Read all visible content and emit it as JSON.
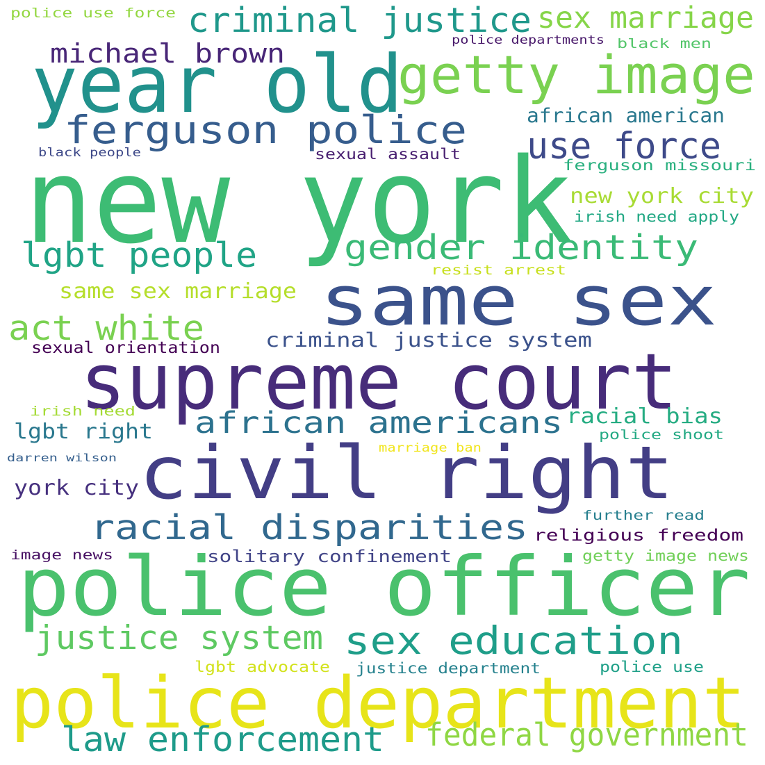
{
  "words": [
    {
      "text": "new york",
      "color": "#3dbc74"
    },
    {
      "text": "police officer",
      "color": "#4ac16d"
    },
    {
      "text": "police department",
      "color": "#e7e419"
    },
    {
      "text": "supreme court",
      "color": "#472c7a"
    },
    {
      "text": "civil right",
      "color": "#433e85"
    },
    {
      "text": "same sex",
      "color": "#3b528b"
    },
    {
      "text": "year old",
      "color": "#21918c"
    },
    {
      "text": "getty image",
      "color": "#7ad151"
    },
    {
      "text": "ferguson police",
      "color": "#365d8d"
    },
    {
      "text": "racial disparities",
      "color": "#31688e"
    },
    {
      "text": "sex education",
      "color": "#1f9e89"
    },
    {
      "text": "african americans",
      "color": "#2c728e"
    },
    {
      "text": "criminal justice",
      "color": "#1f988b"
    },
    {
      "text": "gender identity",
      "color": "#3aba76"
    },
    {
      "text": "law enforcement",
      "color": "#1e9b8a"
    },
    {
      "text": "justice system",
      "color": "#5ec962"
    },
    {
      "text": "federal government",
      "color": "#8fd744"
    },
    {
      "text": "lgbt people",
      "color": "#20a486"
    },
    {
      "text": "sex marriage",
      "color": "#86d549"
    },
    {
      "text": "use force",
      "color": "#3e4a89"
    },
    {
      "text": "act white",
      "color": "#7ad151"
    },
    {
      "text": "michael brown",
      "color": "#482677"
    },
    {
      "text": "same sex marriage",
      "color": "#b5de2b"
    },
    {
      "text": "criminal justice system",
      "color": "#3b528b"
    },
    {
      "text": "african american",
      "color": "#2a788e"
    },
    {
      "text": "new york city",
      "color": "#a8db34"
    },
    {
      "text": "religious freedom",
      "color": "#440154"
    },
    {
      "text": "york city",
      "color": "#46307e"
    },
    {
      "text": "racial bias",
      "color": "#25ac82"
    },
    {
      "text": "lgbt right",
      "color": "#2a788e"
    },
    {
      "text": "solitary confinement",
      "color": "#414487"
    },
    {
      "text": "ferguson missouri",
      "color": "#2ab07f"
    },
    {
      "text": "sexual assault",
      "color": "#481f70"
    },
    {
      "text": "sexual orientation",
      "color": "#440154"
    },
    {
      "text": "irish need apply",
      "color": "#22a884"
    },
    {
      "text": "justice department",
      "color": "#26828e"
    },
    {
      "text": "getty image news",
      "color": "#70cf57"
    },
    {
      "text": "lgbt advocate",
      "color": "#d2e21b"
    },
    {
      "text": "police use",
      "color": "#1fa088"
    },
    {
      "text": "police shoot",
      "color": "#23a983"
    },
    {
      "text": "further read",
      "color": "#277f8e"
    },
    {
      "text": "resist arrest",
      "color": "#c8e020"
    },
    {
      "text": "black men",
      "color": "#52c569"
    },
    {
      "text": "police use force",
      "color": "#93d741"
    },
    {
      "text": "police departments",
      "color": "#48186a"
    },
    {
      "text": "image news",
      "color": "#471063"
    },
    {
      "text": "irish need",
      "color": "#a5db36"
    },
    {
      "text": "black people",
      "color": "#3e4989"
    },
    {
      "text": "darren wilson",
      "color": "#355f8d"
    },
    {
      "text": "marriage ban",
      "color": "#f1e51d"
    }
  ]
}
